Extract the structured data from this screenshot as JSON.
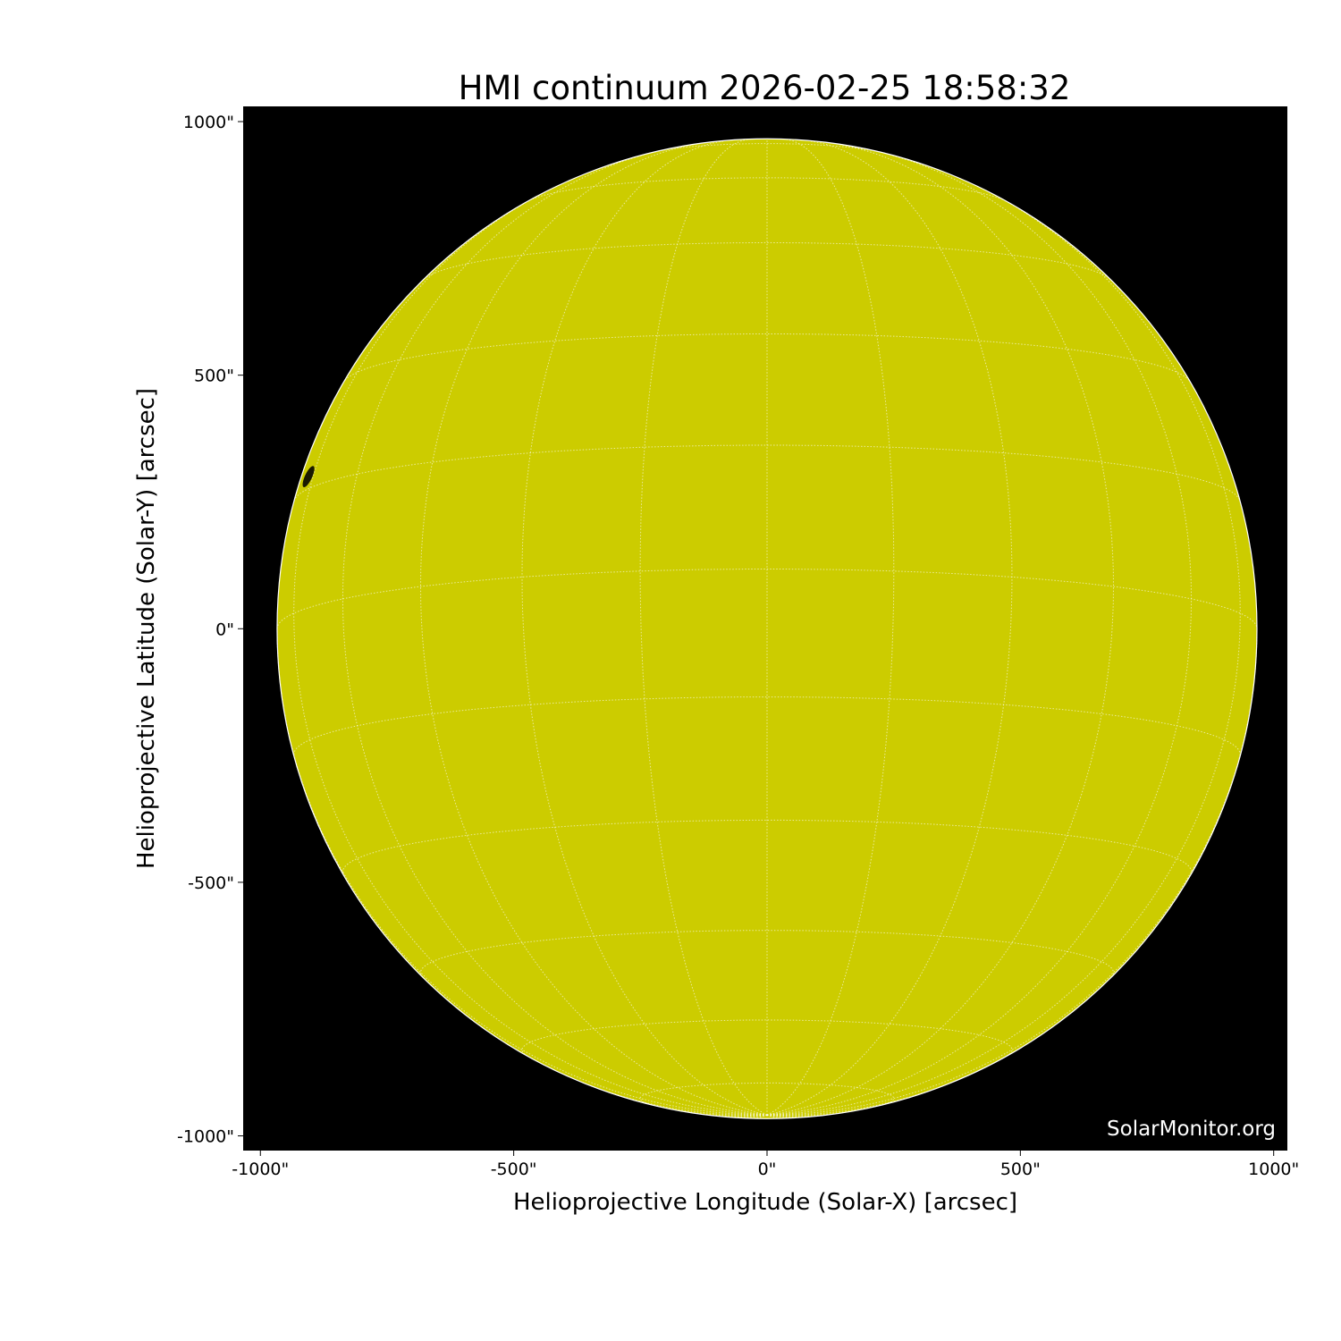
{
  "chart_data": {
    "type": "image",
    "title": "HMI continuum 2026-02-25 18:58:32",
    "xlabel": "Helioprojective Longitude (Solar-X) [arcsec]",
    "ylabel": "Helioprojective Latitude (Solar-Y) [arcsec]",
    "xlim": [
      -1034,
      1027
    ],
    "ylim": [
      -1029,
      1030
    ],
    "xticks": [
      -1000,
      -500,
      0,
      500,
      1000
    ],
    "xtick_labels": [
      "-1000\"",
      "-500\"",
      "0\"",
      "500\"",
      "1000\""
    ],
    "yticks": [
      1000,
      500,
      0,
      -500,
      -1000
    ],
    "ytick_labels": [
      "1000\"",
      "500\"",
      "0\"",
      "-500\"",
      "-1000\""
    ],
    "solar_radius_arcsec": 967,
    "grid_spacing_deg": 15,
    "b0_deg": -7,
    "grid": true,
    "colors": {
      "disk": "#cccc00",
      "background": "#000000",
      "grid": "#ffffff",
      "sunspot": "#1a1a00"
    },
    "features": [
      {
        "type": "sunspot",
        "x_arcsec": -905,
        "y_arcsec": 300
      }
    ],
    "watermark": "SolarMonitor.org"
  }
}
